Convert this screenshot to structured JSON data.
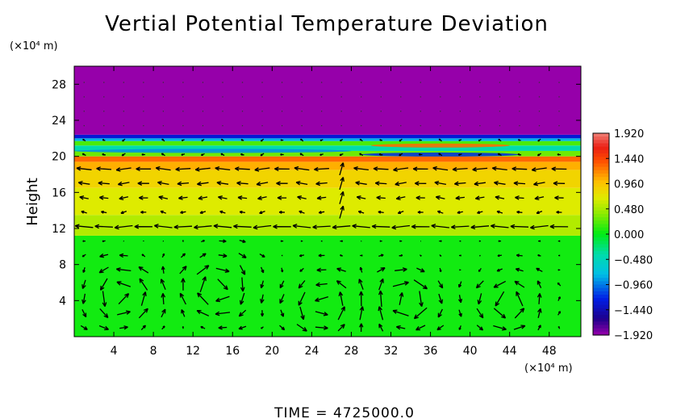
{
  "chart_data": {
    "type": "heatmap",
    "title": "Vertial Potential Temperature Deviation",
    "ylabel": "Height",
    "x_unit": "(×10⁴ m)",
    "y_unit": "(×10⁴ m)",
    "footer": "TIME = 4725000.0",
    "xlim": [
      0,
      51.2
    ],
    "ylim": [
      0,
      30
    ],
    "x_ticks": [
      4,
      8,
      12,
      16,
      20,
      24,
      28,
      32,
      36,
      40,
      44,
      48
    ],
    "x_tick_labels": [
      "4",
      "8",
      "12",
      "16",
      "20",
      "24",
      "28",
      "32",
      "36",
      "40",
      "44",
      "48"
    ],
    "y_ticks": [
      4,
      8,
      12,
      16,
      20,
      24,
      28
    ],
    "y_tick_labels": [
      "4",
      "8",
      "12",
      "16",
      "20",
      "24",
      "28"
    ],
    "colorbar": {
      "min": -1.92,
      "max": 1.92,
      "tick_values": [
        1.92,
        1.44,
        0.96,
        0.48,
        0.0,
        -0.48,
        -0.96,
        -1.44,
        -1.92
      ],
      "tick_labels": [
        "1.920",
        "1.440",
        "0.960",
        "0.480",
        "0.000",
        "−0.480",
        "−0.960",
        "−1.440",
        "−1.920"
      ]
    },
    "field_bands": [
      {
        "y_from": 0,
        "y_to": 11.2,
        "value": 0.05
      },
      {
        "y_from": 11.2,
        "y_to": 13.5,
        "value": 0.52
      },
      {
        "y_from": 13.5,
        "y_to": 16.5,
        "value": 0.68
      },
      {
        "y_from": 16.5,
        "y_to": 18.5,
        "value": 0.85
      },
      {
        "y_from": 18.5,
        "y_to": 19.4,
        "value": 1.05
      },
      {
        "y_from": 19.4,
        "y_to": 20.0,
        "value": 1.3
      },
      {
        "y_from": 20.0,
        "y_to": 20.6,
        "value": 0.3
      },
      {
        "y_from": 20.6,
        "y_to": 21.2,
        "value": -0.4
      },
      {
        "y_from": 21.2,
        "y_to": 21.7,
        "value": 0.2
      },
      {
        "y_from": 21.7,
        "y_to": 22.0,
        "value": -0.8
      },
      {
        "y_from": 22.0,
        "y_to": 22.4,
        "value": -1.3
      },
      {
        "y_from": 22.4,
        "y_to": 30,
        "value": -1.92
      }
    ],
    "field_streaks": [
      {
        "x_from": 0,
        "x_to": 28,
        "y": 20.6,
        "value": -0.9
      },
      {
        "x_from": 29,
        "x_to": 45,
        "y": 20.2,
        "value": -1.2
      },
      {
        "x_from": 30,
        "x_to": 44,
        "y": 21.2,
        "value": 1.3
      }
    ],
    "vortices": [
      {
        "x": 4.6,
        "y": 4.5,
        "r": 4.2
      },
      {
        "x": 14.6,
        "y": 5.5,
        "r": 4.2
      },
      {
        "x": 25.2,
        "y": 3.5,
        "r": 4.0
      },
      {
        "x": 33.5,
        "y": 4.0,
        "r": 4.0
      },
      {
        "x": 44.0,
        "y": 3.8,
        "r": 3.8
      }
    ],
    "wind_bands": [
      {
        "y": 20.8,
        "u": -0.25
      },
      {
        "y": 18.2,
        "u": -1.0
      },
      {
        "y": 16.5,
        "u": -0.8
      },
      {
        "y": 15.0,
        "u": -0.6
      },
      {
        "y": 11.8,
        "u": -1.2
      }
    ]
  }
}
